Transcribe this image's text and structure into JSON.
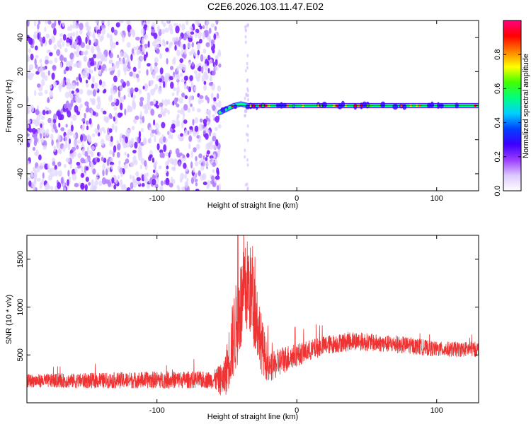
{
  "title": "C2E6.2026.103.11.47.E02",
  "chart_data": [
    {
      "type": "heatmap",
      "name": "spectrogram",
      "xlabel": "Height of straight line (km)",
      "ylabel": "Frequency (Hz)",
      "xlim": [
        -193,
        130
      ],
      "ylim": [
        -50,
        50
      ],
      "xticks": [
        -100,
        0,
        100
      ],
      "yticks": [
        -40,
        -20,
        0,
        20,
        40
      ],
      "colorbar": {
        "label": "Normalized spectral amplitude",
        "range": [
          0,
          1
        ],
        "ticks": [
          0.0,
          0.2,
          0.4,
          0.6,
          0.8
        ],
        "tick_labels": [
          "0.0",
          "0.2",
          "0.4",
          "0.6",
          "0.8"
        ],
        "colors": [
          "#ffffff",
          "#dcc8ff",
          "#9b3cff",
          "#3c00ff",
          "#0040ff",
          "#00d0ff",
          "#00ff80",
          "#40ff00",
          "#ffff00",
          "#ff8000",
          "#ff0000",
          "#ff0080"
        ]
      },
      "noise_region_x": [
        -193,
        -55
      ],
      "signal_track": {
        "x": [
          -55,
          -50,
          -45,
          -40,
          -35,
          -30,
          -20,
          -10,
          0,
          20,
          50,
          80,
          100,
          120,
          130
        ],
        "freq": [
          -4,
          -2,
          0,
          1,
          0,
          0,
          0,
          0,
          0,
          0,
          0,
          0,
          0,
          0,
          0
        ],
        "peak_amplitude": 0.9
      }
    },
    {
      "type": "line",
      "name": "snr",
      "xlabel": "Height of straight line (km)",
      "ylabel": "SNR (10 * v/v)",
      "xlim": [
        -193,
        130
      ],
      "ylim": [
        0,
        1750
      ],
      "xticks": [
        -100,
        0,
        100
      ],
      "yticks": [
        500,
        1000,
        1500
      ],
      "color": "#ef3333",
      "envelope": {
        "x": [
          -193,
          -150,
          -100,
          -60,
          -52,
          -45,
          -40,
          -35,
          -30,
          -25,
          -20,
          -10,
          0,
          20,
          40,
          60,
          80,
          100,
          120,
          130
        ],
        "mean": [
          230,
          230,
          240,
          240,
          240,
          700,
          1000,
          1250,
          1000,
          600,
          350,
          450,
          500,
          600,
          650,
          620,
          600,
          560,
          560,
          560
        ],
        "spread": [
          70,
          80,
          90,
          90,
          200,
          450,
          500,
          500,
          450,
          300,
          150,
          150,
          120,
          100,
          100,
          90,
          90,
          80,
          80,
          80
        ]
      }
    }
  ]
}
